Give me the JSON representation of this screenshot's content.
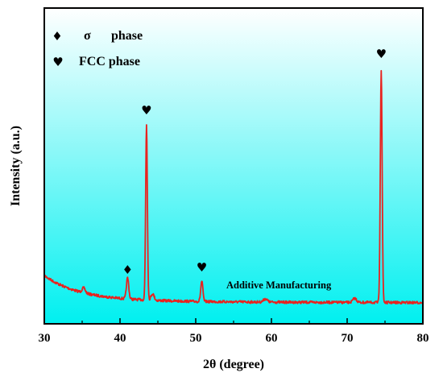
{
  "chart_data": {
    "type": "line",
    "xlabel": "2θ (degree)",
    "ylabel": "Intensity (a.u.)",
    "xlim": [
      30,
      80
    ],
    "xticks": [
      "30",
      "40",
      "50",
      "60",
      "70",
      "80"
    ],
    "y_ticks_shown": false,
    "background_gradient": [
      "#ffffff",
      "#00f0f0"
    ],
    "series": [
      {
        "color": "#e8231f",
        "peaks": [
          {
            "x": 41.0,
            "label_marker": "♦"
          },
          {
            "x": 43.5,
            "label_marker": "♥"
          },
          {
            "x": 50.8,
            "label_marker": "♥"
          },
          {
            "x": 74.5,
            "label_marker": "♥"
          }
        ]
      }
    ],
    "legend": {
      "placement": "top-left",
      "entries": [
        {
          "marker": "♦",
          "symbol": "σ",
          "label": "phase"
        },
        {
          "marker": "♥",
          "label": "FCC phase"
        }
      ]
    },
    "annotation": "Additive Manufacturing"
  }
}
